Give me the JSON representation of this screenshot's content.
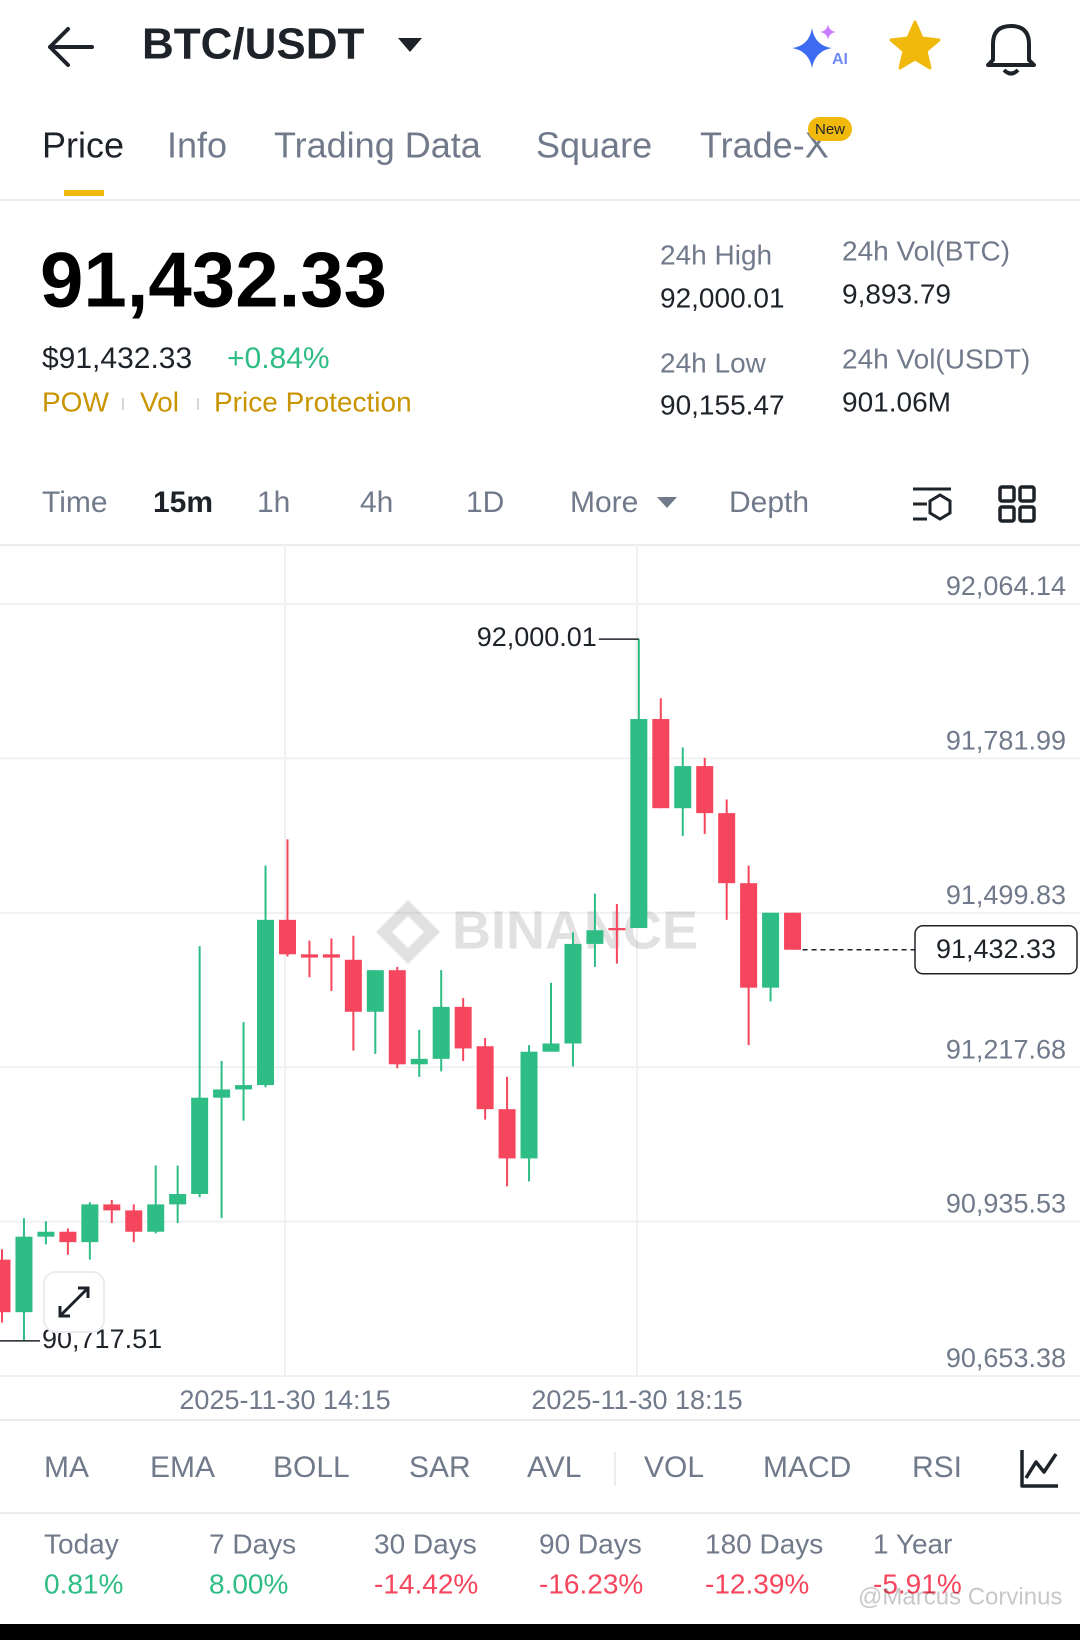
{
  "header": {
    "pair": "BTC/USDT",
    "ai_badge": "AI"
  },
  "tabs": [
    "Price",
    "Info",
    "Trading Data",
    "Square",
    "Trade-X"
  ],
  "tab_badge": "New",
  "price": {
    "last": "91,432.33",
    "usd": "$91,432.33",
    "change": "+0.84%",
    "tags": [
      "POW",
      "Vol",
      "Price Protection"
    ]
  },
  "stats": [
    {
      "label": "24h High",
      "value": "92,000.01"
    },
    {
      "label": "24h Vol(BTC)",
      "value": "9,893.79"
    },
    {
      "label": "24h Low",
      "value": "90,155.47"
    },
    {
      "label": "24h Vol(USDT)",
      "value": "901.06M"
    }
  ],
  "intervals": [
    "Time",
    "15m",
    "1h",
    "4h",
    "1D",
    "More",
    "Depth"
  ],
  "chart": {
    "type": "candlestick",
    "watermark": "BINANCE",
    "colors": {
      "up": "#2ebd85",
      "down": "#f6465d"
    },
    "open": [
      90866,
      90770,
      90908,
      90917,
      90898,
      90967,
      90956,
      90917,
      90967,
      90986,
      91162,
      91177,
      91185,
      91487,
      91424,
      91424,
      91414,
      91319,
      91395,
      91223,
      91233,
      91328,
      91256,
      91141,
      91051,
      91246,
      91261,
      91443,
      91472,
      91472,
      91854,
      91691,
      91768,
      91682,
      91554,
      91363,
      91500
    ],
    "high": [
      90885,
      90942,
      90936,
      90923,
      90971,
      90975,
      90967,
      91038,
      91038,
      91439,
      91229,
      91300,
      91586,
      91634,
      91449,
      91453,
      91458,
      91395,
      91401,
      91286,
      91395,
      91344,
      91271,
      91200,
      91258,
      91372,
      91464,
      91535,
      91516,
      92000.01,
      91892,
      91802,
      91783,
      91707,
      91586,
      91500,
      91500
    ],
    "low": [
      90751,
      90717.51,
      90894,
      90875,
      90866,
      90933,
      90898,
      90914,
      90933,
      90980,
      90942,
      91120,
      91181,
      91420,
      91382,
      91357,
      91248,
      91242,
      91216,
      91200,
      91210,
      91229,
      91122,
      91000,
      91009,
      91248,
      91219,
      91401,
      91407,
      91472,
      91691,
      91640,
      91644,
      91487,
      91258,
      91338,
      91432.33
    ],
    "close": [
      90770,
      90908,
      90917,
      90898,
      90967,
      90956,
      90917,
      90967,
      90986,
      91162,
      91177,
      91185,
      91487,
      91424,
      91418,
      91418,
      91319,
      91395,
      91223,
      91233,
      91328,
      91252,
      91141,
      91051,
      91246,
      91261,
      91443,
      91468,
      91468,
      91854,
      91691,
      91768,
      91682,
      91554,
      91363,
      91500,
      91432.33
    ],
    "ylim": [
      90653.38,
      92172
    ],
    "yticks": [
      {
        "value": 92064.14,
        "label": "92,064.14"
      },
      {
        "value": 91781.99,
        "label": "91,781.99"
      },
      {
        "value": 91499.83,
        "label": "91,499.83"
      },
      {
        "value": 91217.68,
        "label": "91,217.68"
      },
      {
        "value": 90935.53,
        "label": "90,935.53"
      },
      {
        "value": 90653.38,
        "label": "90,653.38"
      }
    ],
    "xticks": [
      "2025-11-30 14:15",
      "2025-11-30 18:15"
    ],
    "annotations": {
      "max": "92,000.01",
      "min": "90,717.51",
      "last": "91,432.33"
    },
    "grid": true
  },
  "indicators": [
    "MA",
    "EMA",
    "BOLL",
    "SAR",
    "AVL",
    "VOL",
    "MACD",
    "RSI"
  ],
  "performance": [
    {
      "label": "Today",
      "value": "0.81%"
    },
    {
      "label": "7 Days",
      "value": "8.00%"
    },
    {
      "label": "30 Days",
      "value": "-14.42%"
    },
    {
      "label": "90 Days",
      "value": "-16.23%"
    },
    {
      "label": "180 Days",
      "value": "-12.39%"
    },
    {
      "label": "1 Year",
      "value": "-5.91%"
    }
  ],
  "footer_watermark": "@Marcus Corvinus"
}
